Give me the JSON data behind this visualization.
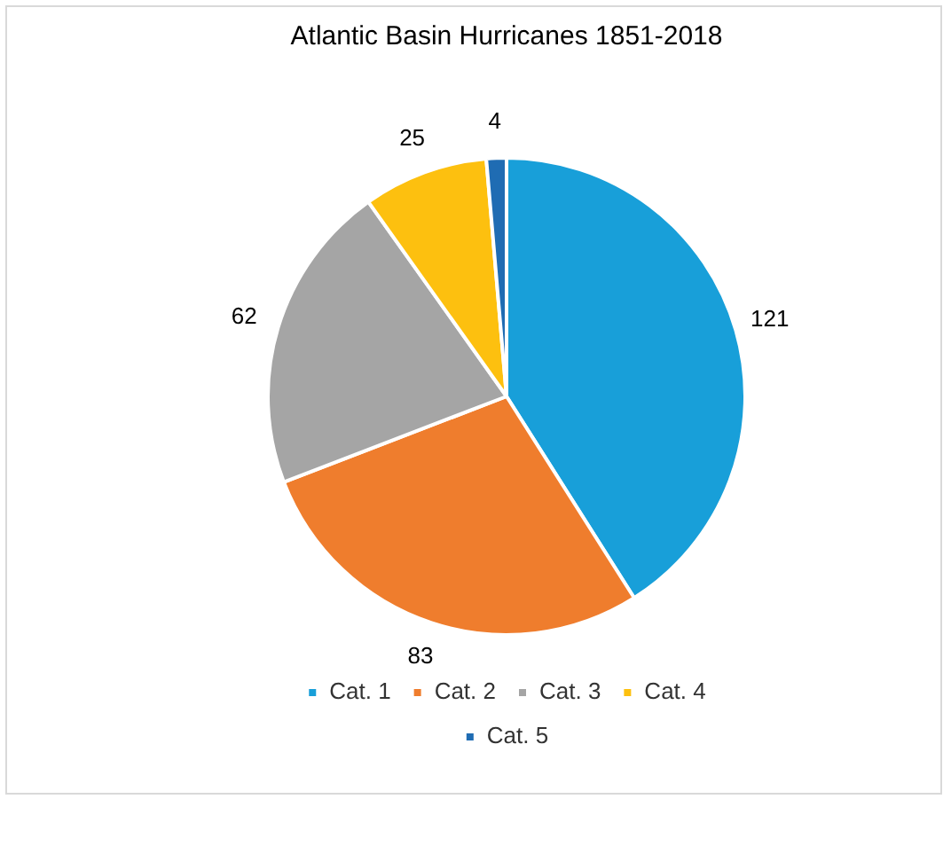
{
  "chart_data": {
    "type": "pie",
    "title": "Atlantic Basin Hurricanes 1851-2018",
    "categories": [
      "Cat. 1",
      "Cat. 2",
      "Cat. 3",
      "Cat. 4",
      "Cat. 5"
    ],
    "values": [
      121,
      83,
      62,
      25,
      4
    ],
    "colors": [
      "#189fd9",
      "#ef7d2d",
      "#a5a5a5",
      "#fdc00f",
      "#1f6cb3"
    ],
    "data_labels": true,
    "legend": "bottom"
  }
}
